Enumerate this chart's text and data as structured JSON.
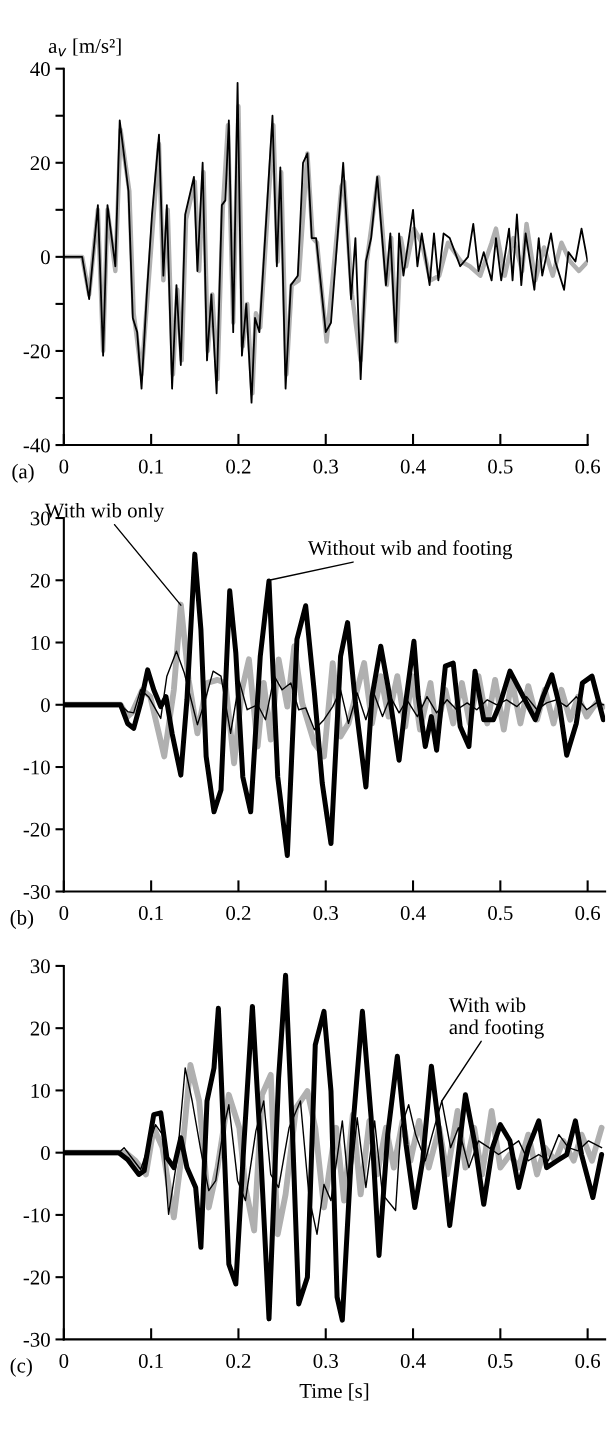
{
  "chart_data": [
    {
      "type": "line",
      "title": "(a)",
      "ylabel": "a$_{v}$ [m/s²]",
      "xlim": [
        0,
        0.6
      ],
      "ylim": [
        -40,
        40
      ],
      "xticks": [
        0,
        0.1,
        0.2,
        0.3,
        0.4,
        0.5,
        0.6
      ],
      "yticks": [
        -40,
        {
          "value": -30,
          "label": null
        },
        -20,
        {
          "value": -10,
          "label": null
        },
        0,
        {
          "value": 10,
          "label": null
        },
        20,
        {
          "value": 30,
          "label": null
        },
        40
      ],
      "series": [
        {
          "color": "#b0b0b0",
          "x": [
            0,
            0.021,
            0.029,
            0.039,
            0.045,
            0.05,
            0.059,
            0.065,
            0.075,
            0.08,
            0.089,
            0.096,
            0.109,
            0.114,
            0.119,
            0.125,
            0.13,
            0.135,
            0.14,
            0.15,
            0.155,
            0.16,
            0.165,
            0.17,
            0.176,
            0.182,
            0.188,
            0.194,
            0.2,
            0.205,
            0.21,
            0.216,
            0.22,
            0.225,
            0.24,
            0.245,
            0.249,
            0.255,
            0.261,
            0.269,
            0.279,
            0.285,
            0.29,
            0.301,
            0.318,
            0.321,
            0.33,
            0.34,
            0.347,
            0.36,
            0.37,
            0.375,
            0.381,
            0.386,
            0.392,
            0.401,
            0.41,
            0.42,
            0.43,
            0.44,
            0.455,
            0.465,
            0.477,
            0.49,
            0.495,
            0.505,
            0.515,
            0.525,
            0.53,
            0.54,
            0.55,
            0.56,
            0.57,
            0.58,
            0.59,
            0.6
          ],
          "values": [
            0,
            0,
            -8,
            10,
            -20,
            10,
            -3,
            27,
            14,
            -12,
            -25,
            -8,
            24,
            -5,
            10,
            -25,
            -7,
            -22,
            8,
            16,
            -3,
            18,
            -20,
            -8,
            -26,
            10,
            28,
            -14,
            32,
            -19,
            -10,
            -29,
            -12,
            -15,
            28,
            -1,
            18,
            -25,
            -6,
            -5,
            22,
            4,
            3,
            -18,
            15,
            16,
            -8,
            -22,
            -1,
            17,
            -6,
            4,
            -18,
            4,
            -2,
            6,
            3,
            -5,
            -4,
            3,
            -1,
            -2,
            -4,
            3,
            6,
            -4,
            4,
            -3,
            7,
            -5,
            2,
            -4,
            3,
            -1,
            -3,
            -1
          ]
        },
        {
          "color": "#000000",
          "x": [
            0,
            0.021,
            0.029,
            0.039,
            0.045,
            0.05,
            0.059,
            0.064,
            0.074,
            0.079,
            0.084,
            0.089,
            0.095,
            0.101,
            0.109,
            0.114,
            0.118,
            0.124,
            0.129,
            0.134,
            0.139,
            0.149,
            0.153,
            0.159,
            0.164,
            0.169,
            0.175,
            0.181,
            0.185,
            0.189,
            0.194,
            0.199,
            0.204,
            0.209,
            0.215,
            0.219,
            0.224,
            0.239,
            0.244,
            0.248,
            0.254,
            0.26,
            0.268,
            0.274,
            0.279,
            0.284,
            0.289,
            0.3,
            0.306,
            0.32,
            0.329,
            0.334,
            0.34,
            0.346,
            0.352,
            0.359,
            0.369,
            0.374,
            0.38,
            0.384,
            0.389,
            0.4,
            0.405,
            0.41,
            0.419,
            0.424,
            0.429,
            0.435,
            0.442,
            0.454,
            0.463,
            0.469,
            0.475,
            0.481,
            0.49,
            0.495,
            0.501,
            0.51,
            0.514,
            0.519,
            0.524,
            0.529,
            0.539,
            0.544,
            0.548,
            0.558,
            0.563,
            0.573,
            0.578,
            0.586,
            0.593,
            0.6
          ],
          "values": [
            0,
            0,
            -9,
            11,
            -21,
            11,
            -2,
            29,
            14,
            -13,
            -16,
            -28,
            -8,
            9,
            26,
            -4,
            11,
            -28,
            -6,
            -23,
            9,
            17,
            -3,
            20,
            -22,
            -8,
            -29,
            11,
            12,
            29,
            -16,
            37,
            -21,
            -10,
            -31,
            -13,
            -16,
            30,
            -2,
            19,
            -28,
            -6,
            -4,
            20,
            22,
            4,
            4,
            -16,
            -14,
            20,
            -9,
            4,
            -26,
            -1,
            4,
            17,
            -6,
            5,
            -18,
            5,
            -4,
            10,
            -2,
            5,
            -6,
            5,
            -5,
            5,
            4,
            -2,
            0,
            7,
            -3,
            1,
            -5,
            4,
            -5,
            6,
            -5,
            9,
            -6,
            5,
            -7,
            4,
            -4,
            5,
            -1,
            -7,
            1,
            -1,
            6,
            -1
          ]
        }
      ]
    },
    {
      "type": "line",
      "title": "(b)",
      "xlim": [
        0,
        0.62
      ],
      "ylim": [
        -30,
        30
      ],
      "xticks": [
        0,
        0.1,
        0.2,
        0.3,
        0.4,
        0.5,
        0.6
      ],
      "yticks": [
        -30,
        -20,
        -10,
        0,
        10,
        20,
        30
      ],
      "annotations": [
        {
          "text": "With wib only",
          "x": 0.134,
          "y": 16
        },
        {
          "text": "Without wib and footing",
          "x": 0.235,
          "y": 20
        }
      ],
      "series": [
        {
          "color": "#000000",
          "x": [
            0,
            0.065,
            0.073,
            0.08,
            0.088,
            0.096,
            0.103,
            0.111,
            0.117,
            0.124,
            0.134,
            0.141,
            0.15,
            0.157,
            0.163,
            0.172,
            0.18,
            0.19,
            0.197,
            0.205,
            0.214,
            0.225,
            0.235,
            0.245,
            0.256,
            0.267,
            0.277,
            0.287,
            0.296,
            0.306,
            0.317,
            0.325,
            0.334,
            0.346,
            0.353,
            0.363,
            0.372,
            0.384,
            0.391,
            0.401,
            0.406,
            0.414,
            0.421,
            0.427,
            0.437,
            0.446,
            0.454,
            0.464,
            0.471,
            0.481,
            0.492,
            0.5,
            0.511,
            0.52,
            0.53,
            0.54,
            0.549,
            0.559,
            0.568,
            0.576,
            0.587,
            0.594,
            0.605,
            0.618
          ],
          "values": [
            0,
            0,
            -3,
            -3.8,
            0.3,
            5.6,
            2.4,
            -0.3,
            1.3,
            -4.6,
            -11.3,
            0.8,
            24.2,
            12.1,
            -8.3,
            -17.2,
            -13.7,
            18.3,
            8.3,
            -11.6,
            -17.2,
            7.8,
            19.9,
            -11.6,
            -24.2,
            10.5,
            15.9,
            1.9,
            -12.6,
            -22.3,
            7.8,
            13.2,
            0.3,
            -13.2,
            1.3,
            9.4,
            2.4,
            -8.9,
            -0.3,
            10.2,
            1.3,
            -6.7,
            -1.9,
            -7.3,
            6.2,
            6.7,
            -3.5,
            -6.7,
            5.4,
            -2.4,
            -2.4,
            0.3,
            5.4,
            3,
            0.3,
            -2.4,
            1.3,
            4.8,
            -0.3,
            -8.1,
            -3,
            3.5,
            4.6,
            -2.4
          ]
        },
        {
          "color": "#b0b0b0",
          "x": [
            0,
            0.065,
            0.073,
            0.078,
            0.09,
            0.099,
            0.115,
            0.126,
            0.134,
            0.143,
            0.153,
            0.164,
            0.176,
            0.185,
            0.195,
            0.204,
            0.212,
            0.222,
            0.229,
            0.237,
            0.246,
            0.256,
            0.264,
            0.273,
            0.287,
            0.298,
            0.308,
            0.317,
            0.326,
            0.336,
            0.344,
            0.353,
            0.363,
            0.372,
            0.382,
            0.391,
            0.399,
            0.408,
            0.42,
            0.427,
            0.437,
            0.446,
            0.456,
            0.465,
            0.475,
            0.485,
            0.494,
            0.504,
            0.513,
            0.523,
            0.532,
            0.542,
            0.551,
            0.561,
            0.57,
            0.58,
            0.589,
            0.599,
            0.61,
            0.618
          ],
          "values": [
            0,
            0,
            -1.9,
            -1.3,
            2.4,
            1.3,
            -8.3,
            2.4,
            16.1,
            4,
            -4.6,
            3.5,
            4,
            3.5,
            -9.4,
            2.4,
            7.3,
            -6.7,
            3.5,
            -5.6,
            7.3,
            -0.3,
            9.4,
            0.3,
            -6.2,
            -8.3,
            6.7,
            -5.1,
            -3,
            2.4,
            6.7,
            -3,
            4.6,
            -1.9,
            4.6,
            -3.5,
            4.6,
            -4,
            3.5,
            -4,
            2.4,
            -3,
            3.5,
            -3,
            4.6,
            -3,
            4,
            -4,
            4,
            -3,
            3,
            -2.4,
            2.4,
            -3,
            2.4,
            -2.4,
            1.3,
            -1.9,
            0.3,
            -0.3
          ]
        },
        {
          "color": "#000000",
          "x": [
            0,
            0.065,
            0.073,
            0.08,
            0.088,
            0.097,
            0.111,
            0.118,
            0.129,
            0.138,
            0.153,
            0.161,
            0.171,
            0.18,
            0.191,
            0.201,
            0.21,
            0.222,
            0.231,
            0.241,
            0.25,
            0.26,
            0.269,
            0.277,
            0.287,
            0.298,
            0.308,
            0.317,
            0.326,
            0.336,
            0.346,
            0.355,
            0.365,
            0.374,
            0.384,
            0.393,
            0.405,
            0.416,
            0.427,
            0.439,
            0.45,
            0.462,
            0.473,
            0.485,
            0.496,
            0.507,
            0.519,
            0.53,
            0.542,
            0.553,
            0.564,
            0.576,
            0.587,
            0.599,
            0.61,
            0.618
          ],
          "values": [
            0,
            0,
            -1.1,
            -1.3,
            2.4,
            1.3,
            -2.2,
            4.6,
            8.6,
            5.1,
            -3.2,
            0.3,
            5.4,
            4.6,
            -4.6,
            3.8,
            -0.8,
            0,
            -2.4,
            4.6,
            2.4,
            3.5,
            -0.8,
            -0.5,
            -4,
            -2.4,
            -0.3,
            2.4,
            -3,
            1.9,
            -2.4,
            1.9,
            -1.9,
            1.3,
            -1.3,
            0.8,
            -1.9,
            1.3,
            -1.3,
            0.8,
            -0.8,
            0.3,
            -0.8,
            0.8,
            0,
            0.8,
            -0.3,
            1.3,
            -0.8,
            0.3,
            0.8,
            -0.3,
            1.3,
            -0.8,
            0.3,
            0
          ]
        }
      ]
    },
    {
      "type": "line",
      "title": "(c)",
      "xlabel": "Time [s]",
      "xlim": [
        0,
        0.62
      ],
      "ylim": [
        -30,
        30
      ],
      "xticks": [
        0,
        0.1,
        0.2,
        0.3,
        0.4,
        0.5,
        0.6
      ],
      "yticks": [
        -30,
        -20,
        -10,
        0,
        10,
        20,
        30
      ],
      "annotations": [
        {
          "text": "With wib\nand footing",
          "x": 0.433,
          "y": 8.3
        }
      ],
      "series": [
        {
          "color": "#000000",
          "x": [
            0,
            0.063,
            0.073,
            0.086,
            0.092,
            0.103,
            0.111,
            0.118,
            0.126,
            0.134,
            0.141,
            0.151,
            0.157,
            0.164,
            0.172,
            0.177,
            0.183,
            0.189,
            0.197,
            0.206,
            0.216,
            0.224,
            0.235,
            0.246,
            0.254,
            0.262,
            0.269,
            0.279,
            0.288,
            0.298,
            0.306,
            0.313,
            0.319,
            0.331,
            0.342,
            0.352,
            0.361,
            0.371,
            0.382,
            0.392,
            0.402,
            0.411,
            0.421,
            0.432,
            0.442,
            0.451,
            0.46,
            0.471,
            0.481,
            0.491,
            0.5,
            0.511,
            0.521,
            0.532,
            0.544,
            0.553,
            0.565,
            0.576,
            0.586,
            0.593,
            0.606,
            0.616
          ],
          "values": [
            0,
            0,
            -1.1,
            -3.5,
            -2.9,
            6.1,
            6.4,
            -0.8,
            -2.4,
            2.4,
            -2.4,
            -5.6,
            -15.2,
            8.3,
            13.6,
            23.2,
            2.9,
            -17.9,
            -21.1,
            0.8,
            23.5,
            4,
            -26.7,
            12,
            28.5,
            2.9,
            -24.3,
            -20,
            17.3,
            22.7,
            9.9,
            -23.2,
            -26.9,
            4,
            22.7,
            5.6,
            -16.5,
            2.9,
            15.5,
            1.3,
            -8.8,
            -1.3,
            13.9,
            1.3,
            -11.7,
            -1.3,
            9.3,
            1.3,
            -8.3,
            0.8,
            4.5,
            1.9,
            -5.6,
            0.8,
            5.1,
            -2.4,
            -1.3,
            -0.3,
            5.1,
            -0.3,
            -7.2,
            -0.3
          ]
        },
        {
          "color": "#b0b0b0",
          "x": [
            0,
            0.071,
            0.082,
            0.094,
            0.103,
            0.113,
            0.126,
            0.136,
            0.145,
            0.155,
            0.166,
            0.176,
            0.189,
            0.201,
            0.208,
            0.218,
            0.227,
            0.237,
            0.245,
            0.254,
            0.266,
            0.279,
            0.288,
            0.298,
            0.308,
            0.312,
            0.321,
            0.331,
            0.34,
            0.35,
            0.359,
            0.369,
            0.378,
            0.388,
            0.397,
            0.407,
            0.418,
            0.43,
            0.439,
            0.451,
            0.46,
            0.47,
            0.479,
            0.49,
            0.5,
            0.511,
            0.521,
            0.532,
            0.542,
            0.551,
            0.563,
            0.572,
            0.584,
            0.593,
            0.605,
            0.616
          ],
          "values": [
            0,
            0,
            -1.3,
            -3.5,
            4,
            0.8,
            -10.4,
            0.8,
            14.1,
            8.3,
            -8.8,
            -2.4,
            9.3,
            4,
            -5.6,
            -12.5,
            9.3,
            12.5,
            -13.1,
            -6.7,
            7.2,
            9.9,
            4,
            -8.8,
            0.8,
            4,
            -7.7,
            6.1,
            -6.7,
            5.1,
            -3.5,
            4,
            -2.4,
            5.1,
            -1.3,
            5.1,
            -2.4,
            4,
            -3.5,
            6.7,
            -2.4,
            4,
            -3.5,
            6.7,
            -2.4,
            -0.3,
            -2.4,
            2.9,
            -3.5,
            0.8,
            -1.3,
            1.9,
            -1.3,
            2.9,
            -1.3,
            4
          ]
        },
        {
          "color": "#000000",
          "x": [
            0,
            0.063,
            0.069,
            0.076,
            0.088,
            0.105,
            0.113,
            0.12,
            0.13,
            0.139,
            0.147,
            0.157,
            0.166,
            0.174,
            0.183,
            0.189,
            0.199,
            0.208,
            0.22,
            0.229,
            0.237,
            0.246,
            0.258,
            0.271,
            0.281,
            0.29,
            0.298,
            0.306,
            0.319,
            0.327,
            0.336,
            0.346,
            0.356,
            0.365,
            0.38,
            0.386,
            0.395,
            0.403,
            0.414,
            0.422,
            0.433,
            0.443,
            0.452,
            0.464,
            0.475,
            0.487,
            0.498,
            0.51,
            0.521,
            0.532,
            0.544,
            0.555,
            0.567,
            0.578,
            0.589,
            0.601,
            0.616
          ],
          "values": [
            0,
            0,
            0.8,
            -0.5,
            -2.7,
            4.5,
            2.9,
            -9.9,
            -0.8,
            13.6,
            8.3,
            0.3,
            -6.1,
            -4.5,
            4,
            7.7,
            -4.5,
            -7.7,
            3.5,
            8.3,
            -3.5,
            -5.6,
            4,
            8.3,
            -7.2,
            -13.1,
            -5.1,
            -7.7,
            5.1,
            -6.7,
            5.6,
            -5.6,
            5.1,
            -6.7,
            -9.3,
            4,
            7.7,
            2.9,
            -1.3,
            2.9,
            8.3,
            0.8,
            4,
            -2.4,
            1.9,
            0.8,
            -0.3,
            0.8,
            1.9,
            -1.3,
            -0.3,
            -1.3,
            2.9,
            0.8,
            0.3,
            1.9,
            0.8
          ]
        }
      ]
    }
  ]
}
